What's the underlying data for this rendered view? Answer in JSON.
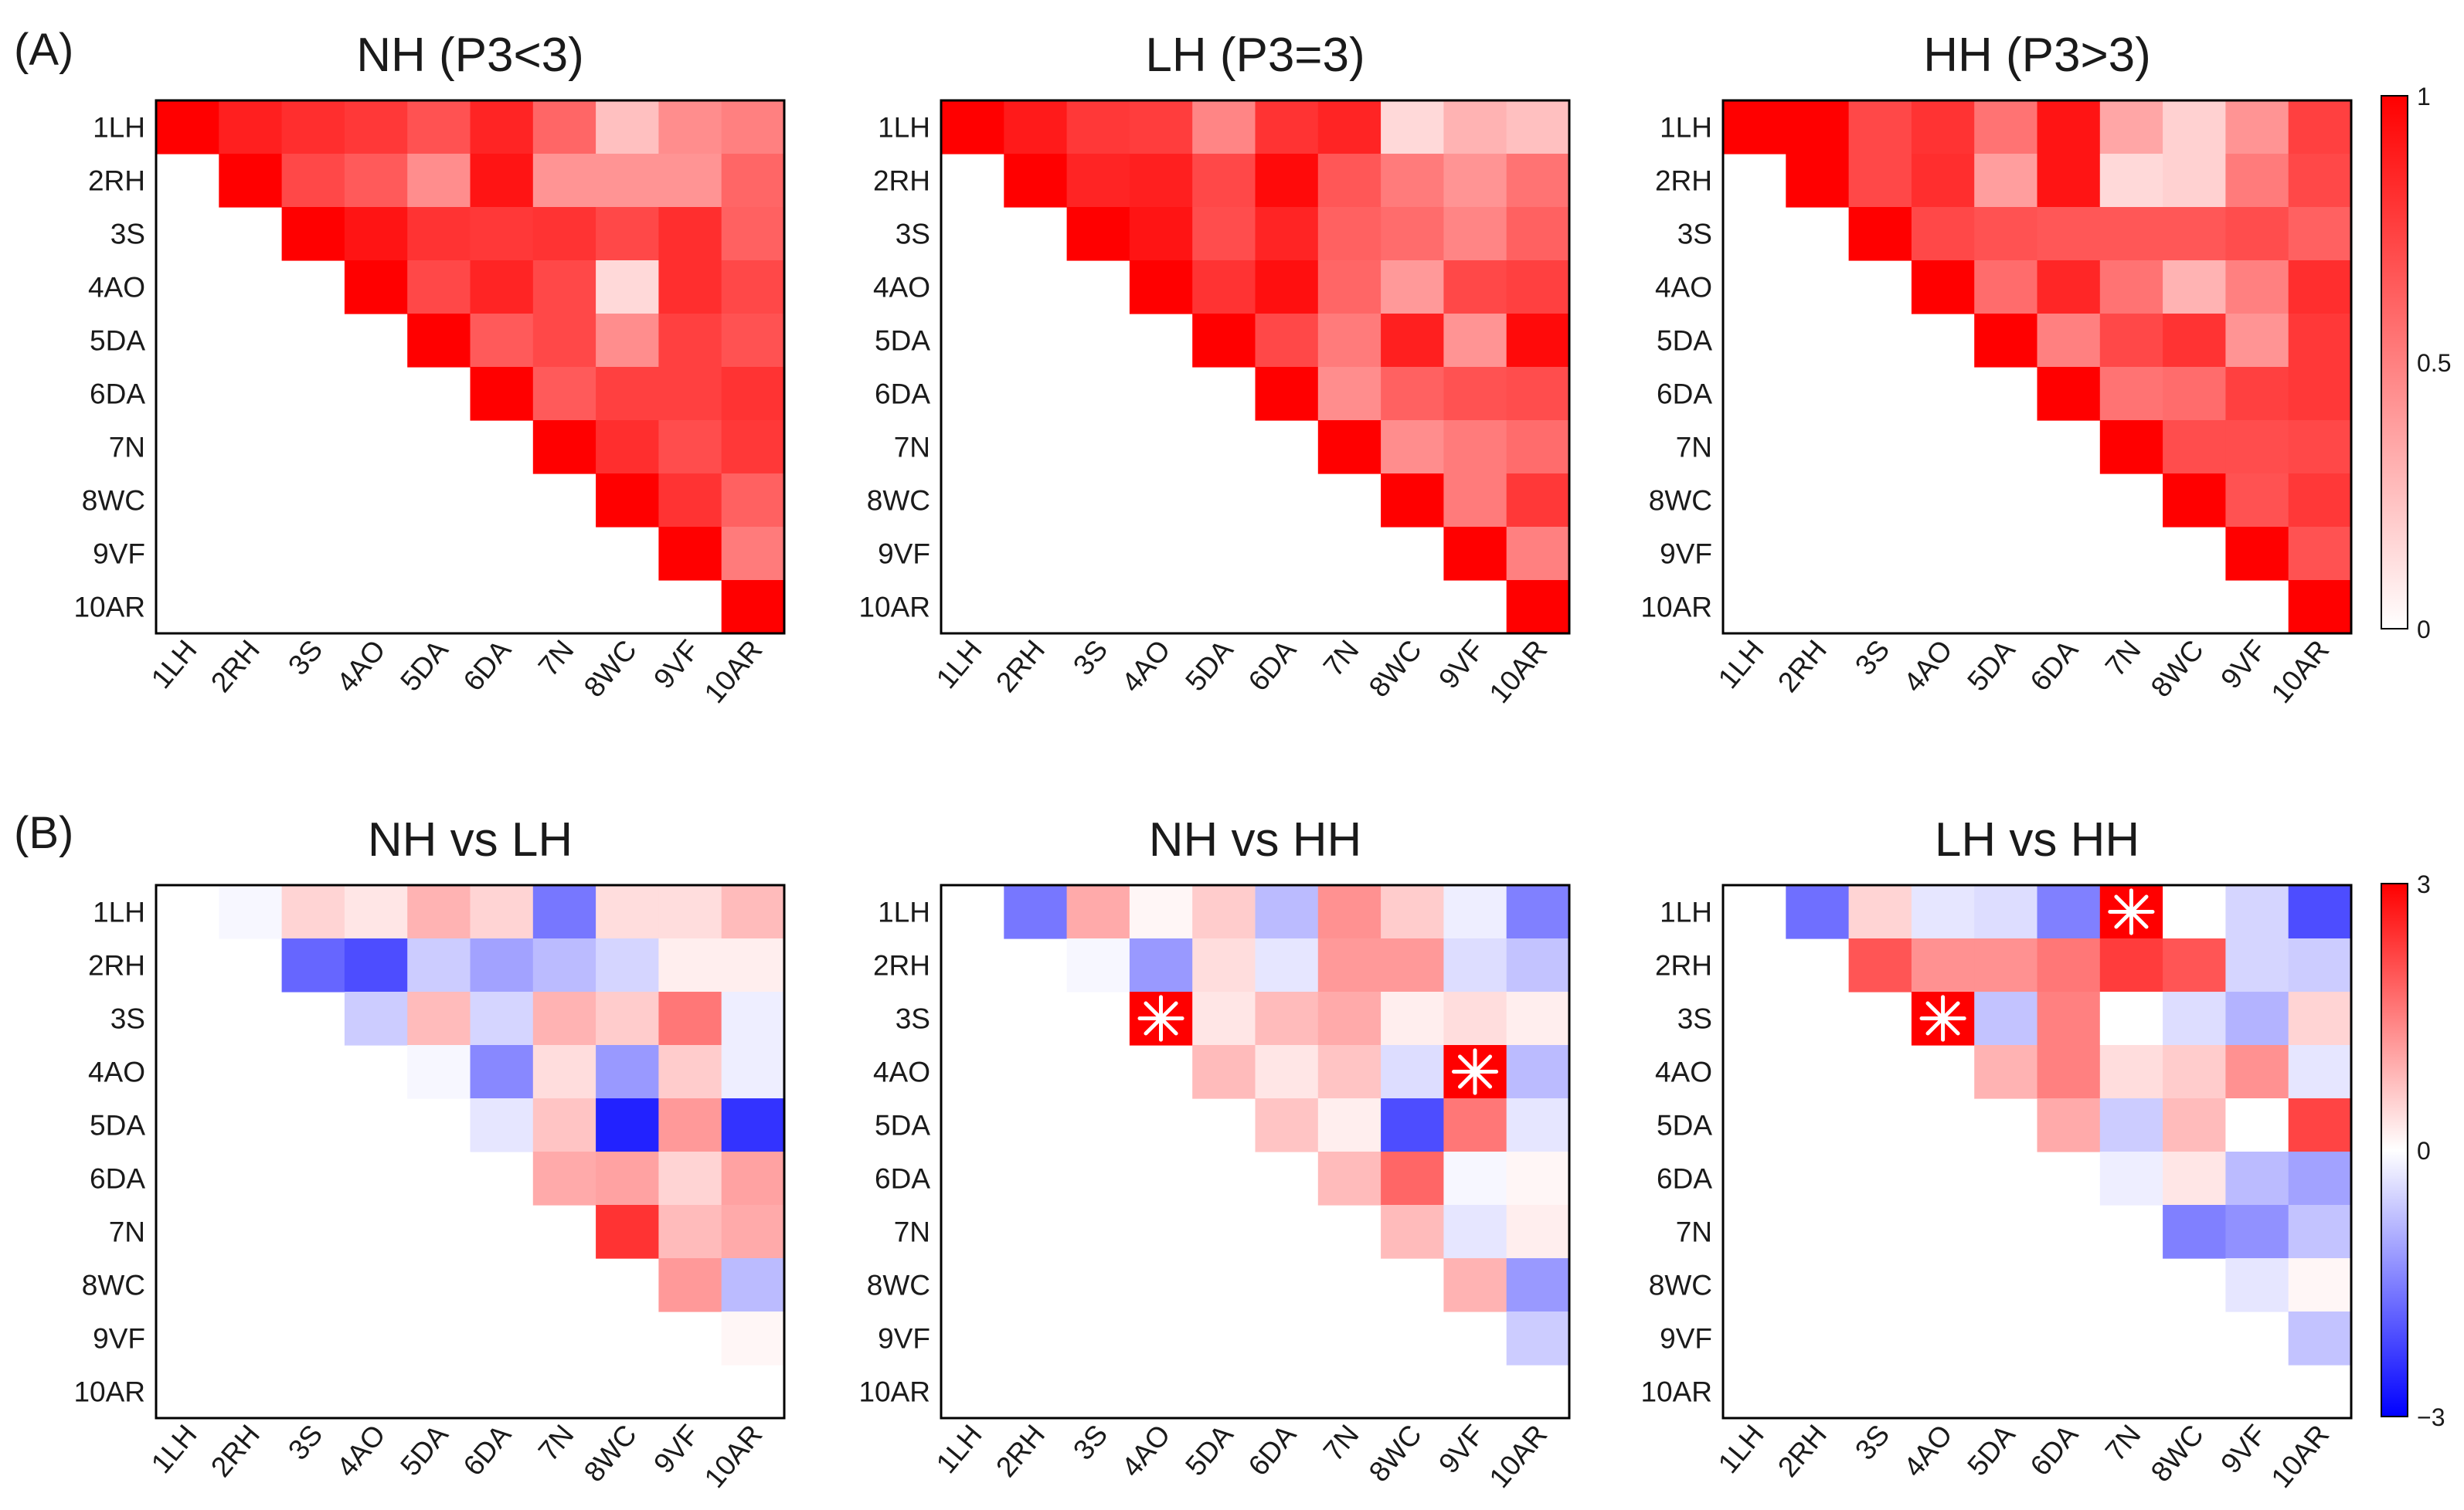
{
  "figure": {
    "panel_labels": {
      "A": "(A)",
      "B": "(B)"
    }
  },
  "colorbars": [
    {
      "id": "corr",
      "ticks": [
        "1",
        "0.5",
        "0"
      ],
      "colors": {
        "high": "#ff0000",
        "mid": "#ff8080",
        "low": "#ffffff"
      }
    },
    {
      "id": "diff",
      "ticks": [
        "3",
        "0",
        "−3"
      ],
      "colors": {
        "high": "#ff0000",
        "mid": "#ffffff",
        "low": "#0000ff"
      }
    }
  ],
  "chart_data": [
    {
      "type": "heatmap",
      "title": "NH (P3<3)",
      "colorbar": "corr",
      "vmin": 0,
      "vmax": 1,
      "row_labels": [
        "1LH",
        "2RH",
        "3S",
        "4AO",
        "5DA",
        "6DA",
        "7N",
        "8WC",
        "9VF",
        "10AR"
      ],
      "col_labels": [
        "1LH",
        "2RH",
        "3S",
        "4AO",
        "5DA",
        "6DA",
        "7N",
        "8WC",
        "9VF",
        "10AR"
      ],
      "values": [
        [
          1,
          0.88,
          0.82,
          0.78,
          0.68,
          0.86,
          0.6,
          0.25,
          0.45,
          0.5
        ],
        [
          null,
          1,
          0.72,
          0.65,
          0.45,
          0.92,
          0.42,
          0.42,
          0.42,
          0.6
        ],
        [
          null,
          null,
          1,
          0.92,
          0.8,
          0.78,
          0.8,
          0.72,
          0.82,
          0.62
        ],
        [
          null,
          null,
          null,
          1,
          0.72,
          0.86,
          0.72,
          0.15,
          0.82,
          0.72
        ],
        [
          null,
          null,
          null,
          null,
          1,
          0.65,
          0.72,
          0.45,
          0.75,
          0.68
        ],
        [
          null,
          null,
          null,
          null,
          null,
          1,
          0.65,
          0.75,
          0.75,
          0.8
        ],
        [
          null,
          null,
          null,
          null,
          null,
          null,
          1,
          0.82,
          0.7,
          0.78
        ],
        [
          null,
          null,
          null,
          null,
          null,
          null,
          null,
          1,
          0.8,
          0.62
        ],
        [
          null,
          null,
          null,
          null,
          null,
          null,
          null,
          null,
          1,
          0.52
        ],
        [
          null,
          null,
          null,
          null,
          null,
          null,
          null,
          null,
          null,
          1
        ]
      ]
    },
    {
      "type": "heatmap",
      "title": "LH (P3=3)",
      "colorbar": "corr",
      "vmin": 0,
      "vmax": 1,
      "row_labels": [
        "1LH",
        "2RH",
        "3S",
        "4AO",
        "5DA",
        "6DA",
        "7N",
        "8WC",
        "9VF",
        "10AR"
      ],
      "col_labels": [
        "1LH",
        "2RH",
        "3S",
        "4AO",
        "5DA",
        "6DA",
        "7N",
        "8WC",
        "9VF",
        "10AR"
      ],
      "values": [
        [
          1,
          0.9,
          0.78,
          0.76,
          0.48,
          0.8,
          0.86,
          0.15,
          0.3,
          0.25
        ],
        [
          null,
          1,
          0.86,
          0.88,
          0.72,
          0.96,
          0.66,
          0.52,
          0.42,
          0.55
        ],
        [
          null,
          null,
          1,
          0.92,
          0.7,
          0.86,
          0.62,
          0.58,
          0.48,
          0.62
        ],
        [
          null,
          null,
          null,
          1,
          0.8,
          0.94,
          0.6,
          0.4,
          0.72,
          0.75
        ],
        [
          null,
          null,
          null,
          null,
          1,
          0.72,
          0.52,
          0.88,
          0.42,
          0.96
        ],
        [
          null,
          null,
          null,
          null,
          null,
          1,
          0.45,
          0.62,
          0.68,
          0.7
        ],
        [
          null,
          null,
          null,
          null,
          null,
          null,
          1,
          0.45,
          0.52,
          0.58
        ],
        [
          null,
          null,
          null,
          null,
          null,
          null,
          null,
          1,
          0.52,
          0.78
        ],
        [
          null,
          null,
          null,
          null,
          null,
          null,
          null,
          null,
          1,
          0.5
        ],
        [
          null,
          null,
          null,
          null,
          null,
          null,
          null,
          null,
          null,
          1
        ]
      ]
    },
    {
      "type": "heatmap",
      "title": "HH (P3>3)",
      "colorbar": "corr",
      "vmin": 0,
      "vmax": 1,
      "row_labels": [
        "1LH",
        "2RH",
        "3S",
        "4AO",
        "5DA",
        "6DA",
        "7N",
        "8WC",
        "9VF",
        "10AR"
      ],
      "col_labels": [
        "1LH",
        "2RH",
        "3S",
        "4AO",
        "5DA",
        "6DA",
        "7N",
        "8WC",
        "9VF",
        "10AR"
      ],
      "values": [
        [
          1,
          1,
          0.72,
          0.8,
          0.55,
          0.92,
          0.35,
          0.18,
          0.42,
          0.75
        ],
        [
          null,
          1,
          0.72,
          0.82,
          0.38,
          0.92,
          0.15,
          0.18,
          0.52,
          0.72
        ],
        [
          null,
          null,
          1,
          0.72,
          0.68,
          0.66,
          0.66,
          0.66,
          0.7,
          0.62
        ],
        [
          null,
          null,
          null,
          1,
          0.58,
          0.85,
          0.55,
          0.3,
          0.5,
          0.82
        ],
        [
          null,
          null,
          null,
          null,
          1,
          0.5,
          0.72,
          0.8,
          0.42,
          0.78
        ],
        [
          null,
          null,
          null,
          null,
          null,
          1,
          0.55,
          0.58,
          0.75,
          0.78
        ],
        [
          null,
          null,
          null,
          null,
          null,
          null,
          1,
          0.7,
          0.7,
          0.72
        ],
        [
          null,
          null,
          null,
          null,
          null,
          null,
          null,
          1,
          0.68,
          0.78
        ],
        [
          null,
          null,
          null,
          null,
          null,
          null,
          null,
          null,
          1,
          0.68
        ],
        [
          null,
          null,
          null,
          null,
          null,
          null,
          null,
          null,
          null,
          1
        ]
      ]
    },
    {
      "type": "heatmap",
      "title": "NH vs LH",
      "colorbar": "diff",
      "vmin": -3,
      "vmax": 3,
      "row_labels": [
        "1LH",
        "2RH",
        "3S",
        "4AO",
        "5DA",
        "6DA",
        "7N",
        "8WC",
        "9VF",
        "10AR"
      ],
      "col_labels": [
        "1LH",
        "2RH",
        "3S",
        "4AO",
        "5DA",
        "6DA",
        "7N",
        "8WC",
        "9VF",
        "10AR"
      ],
      "values": [
        [
          null,
          -0.1,
          0.5,
          0.3,
          0.9,
          0.5,
          -1.6,
          0.4,
          0.4,
          0.8
        ],
        [
          null,
          null,
          -1.8,
          -2.1,
          -0.6,
          -1.1,
          -0.8,
          -0.5,
          0.2,
          0.2
        ],
        [
          null,
          null,
          null,
          -0.6,
          0.8,
          -0.5,
          0.9,
          0.6,
          1.6,
          -0.2
        ],
        [
          null,
          null,
          null,
          null,
          -0.1,
          -1.4,
          0.4,
          -1.2,
          0.6,
          -0.2
        ],
        [
          null,
          null,
          null,
          null,
          null,
          -0.3,
          0.7,
          -2.6,
          1.2,
          -2.4
        ],
        [
          null,
          null,
          null,
          null,
          null,
          null,
          1.0,
          1.1,
          0.5,
          1.1
        ],
        [
          null,
          null,
          null,
          null,
          null,
          null,
          null,
          2.4,
          0.8,
          1.0
        ],
        [
          null,
          null,
          null,
          null,
          null,
          null,
          null,
          null,
          1.2,
          -0.8
        ],
        [
          null,
          null,
          null,
          null,
          null,
          null,
          null,
          null,
          null,
          0.1
        ],
        [
          null,
          null,
          null,
          null,
          null,
          null,
          null,
          null,
          null,
          null
        ]
      ],
      "significant": []
    },
    {
      "type": "heatmap",
      "title": "NH vs HH",
      "colorbar": "diff",
      "vmin": -3,
      "vmax": 3,
      "row_labels": [
        "1LH",
        "2RH",
        "3S",
        "4AO",
        "5DA",
        "6DA",
        "7N",
        "8WC",
        "9VF",
        "10AR"
      ],
      "col_labels": [
        "1LH",
        "2RH",
        "3S",
        "4AO",
        "5DA",
        "6DA",
        "7N",
        "8WC",
        "9VF",
        "10AR"
      ],
      "values": [
        [
          null,
          -1.6,
          1.0,
          0.1,
          0.6,
          -0.8,
          1.3,
          0.6,
          -0.2,
          -1.5
        ],
        [
          null,
          null,
          -0.1,
          -1.2,
          0.4,
          -0.3,
          1.2,
          1.2,
          -0.4,
          -0.7
        ],
        [
          null,
          null,
          null,
          3.0,
          0.3,
          0.8,
          1.0,
          0.2,
          0.4,
          0.2
        ],
        [
          null,
          null,
          null,
          null,
          0.8,
          0.3,
          0.7,
          -0.4,
          3.0,
          -0.8
        ],
        [
          null,
          null,
          null,
          null,
          null,
          0.7,
          0.2,
          -2.1,
          1.6,
          -0.3
        ],
        [
          null,
          null,
          null,
          null,
          null,
          null,
          0.8,
          1.8,
          -0.1,
          0.1
        ],
        [
          null,
          null,
          null,
          null,
          null,
          null,
          null,
          0.8,
          -0.3,
          0.2
        ],
        [
          null,
          null,
          null,
          null,
          null,
          null,
          null,
          null,
          0.9,
          -1.2
        ],
        [
          null,
          null,
          null,
          null,
          null,
          null,
          null,
          null,
          null,
          -0.6
        ],
        [
          null,
          null,
          null,
          null,
          null,
          null,
          null,
          null,
          null,
          null
        ]
      ],
      "significant": [
        [
          2,
          3
        ],
        [
          3,
          8
        ]
      ]
    },
    {
      "type": "heatmap",
      "title": "LH vs HH",
      "colorbar": "diff",
      "vmin": -3,
      "vmax": 3,
      "row_labels": [
        "1LH",
        "2RH",
        "3S",
        "4AO",
        "5DA",
        "6DA",
        "7N",
        "8WC",
        "9VF",
        "10AR"
      ],
      "col_labels": [
        "1LH",
        "2RH",
        "3S",
        "4AO",
        "5DA",
        "6DA",
        "7N",
        "8WC",
        "9VF",
        "10AR"
      ],
      "values": [
        [
          null,
          -1.7,
          0.5,
          -0.3,
          -0.4,
          -1.5,
          3.0,
          0.0,
          -0.5,
          -2.1
        ],
        [
          null,
          null,
          2.0,
          1.3,
          1.3,
          1.6,
          2.3,
          2.0,
          -0.5,
          -0.6
        ],
        [
          null,
          null,
          null,
          3.0,
          -0.7,
          1.5,
          0.0,
          -0.4,
          -0.9,
          0.5
        ],
        [
          null,
          null,
          null,
          null,
          0.9,
          1.5,
          0.4,
          0.6,
          1.3,
          -0.3
        ],
        [
          null,
          null,
          null,
          null,
          null,
          1.0,
          -0.6,
          0.8,
          0.0,
          2.2
        ],
        [
          null,
          null,
          null,
          null,
          null,
          null,
          -0.2,
          0.3,
          -0.8,
          -1.1
        ],
        [
          null,
          null,
          null,
          null,
          null,
          null,
          null,
          -1.5,
          -1.3,
          -0.7
        ],
        [
          null,
          null,
          null,
          null,
          null,
          null,
          null,
          null,
          -0.3,
          0.1
        ],
        [
          null,
          null,
          null,
          null,
          null,
          null,
          null,
          null,
          null,
          -0.7
        ],
        [
          null,
          null,
          null,
          null,
          null,
          null,
          null,
          null,
          null,
          null
        ]
      ],
      "significant": [
        [
          0,
          6
        ],
        [
          2,
          3
        ]
      ]
    }
  ]
}
